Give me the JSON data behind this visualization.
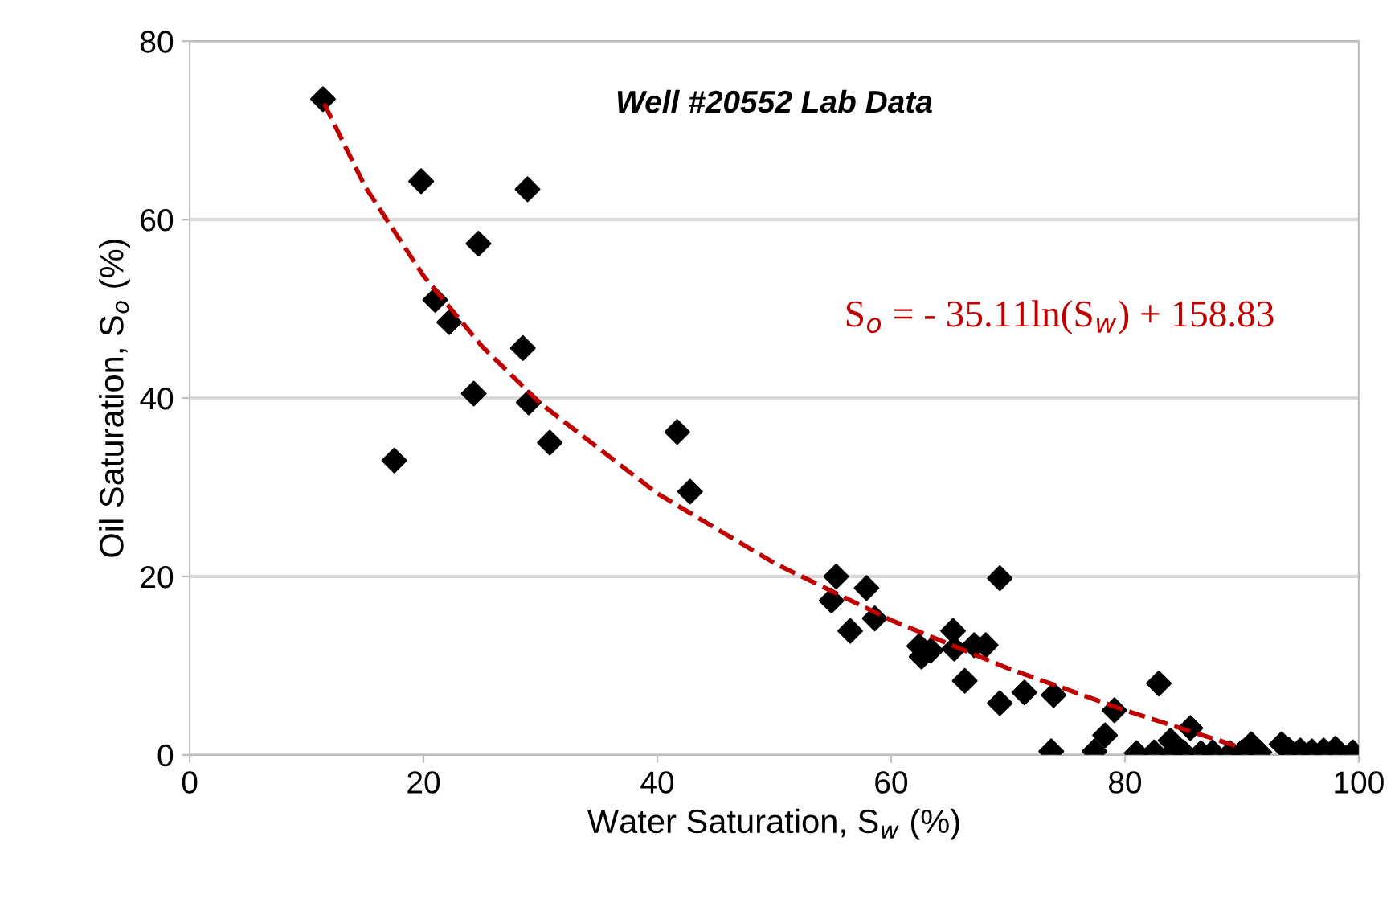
{
  "chart_data": {
    "type": "scatter",
    "title": "Well #20552 Lab Data",
    "xlabel": "Water Saturation, S$_{w}$ (%)",
    "ylabel": "Oil Saturation, S$_{o}$ (%)",
    "annotations": [
      "S$_{o}$ = - 35.11ln(S$_{w}$) + 158.83"
    ],
    "series": [
      {
        "color": "#000000",
        "marker": "diamond",
        "x": [
          11.4,
          19.8,
          21,
          22.2,
          24.7,
          24.3,
          17.5,
          28.9,
          28.5,
          29,
          30.8,
          41.7,
          42.8,
          55.3,
          54.9,
          56.5,
          57.9,
          58.6,
          62.4,
          62.6,
          63.4,
          65.3,
          65.4,
          66.3,
          67.1,
          68.1,
          69.3,
          69.3,
          71.4,
          73.9,
          73.7,
          77.4,
          78.3,
          79.1,
          82.9,
          85.6,
          83.9,
          81,
          82.5,
          84,
          85,
          86.5,
          87.5,
          89,
          90,
          90.8,
          91.5,
          93,
          93.4,
          94,
          95,
          96,
          97,
          98,
          99.5
        ],
        "values": [
          73.5,
          64.3,
          51,
          48.5,
          57.3,
          40.5,
          33,
          63.4,
          45.6,
          39.5,
          35,
          36.2,
          29.5,
          20,
          17.3,
          13.9,
          18.7,
          15.3,
          12.2,
          11,
          11.7,
          13.9,
          11.9,
          8.3,
          12.3,
          12.3,
          19.8,
          5.8,
          7,
          6.7,
          0.4,
          0.4,
          2.2,
          5,
          8,
          3,
          1.6,
          0.2,
          0.3,
          0.2,
          0.3,
          0.2,
          0.3,
          0.2,
          0.3,
          1.2,
          0.3,
          null,
          1.2,
          0.6,
          0.5,
          0.4,
          0.5,
          0.7,
          0.3
        ]
      },
      {
        "type": "line",
        "color": "#c00000",
        "line_style": "dashed",
        "marker": "none",
        "x": [
          11.5,
          15,
          20,
          25,
          30,
          40,
          50,
          60,
          70,
          80,
          90
        ],
        "values": [
          73,
          63.7,
          53.7,
          45.8,
          39.4,
          29.3,
          21.5,
          15.1,
          9.7,
          5,
          0.8
        ]
      }
    ],
    "xlim": [
      0,
      100
    ],
    "ylim": [
      0,
      80
    ],
    "xticks": [
      0,
      20,
      40,
      60,
      80,
      100
    ],
    "yticks": [
      0,
      20,
      40,
      60,
      80
    ],
    "grid": "y",
    "legend": false
  }
}
